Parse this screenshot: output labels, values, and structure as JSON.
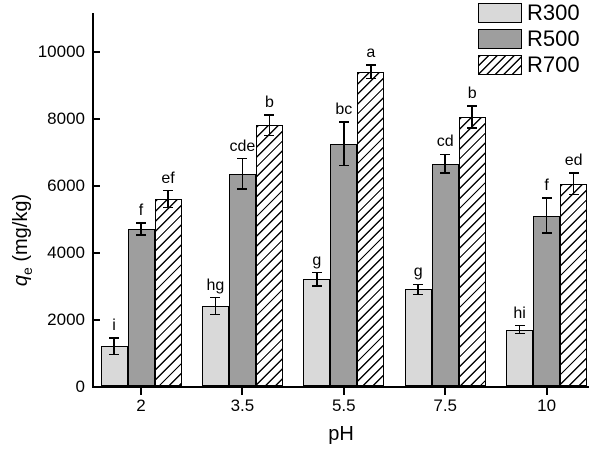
{
  "figure": {
    "background": "#ffffff"
  },
  "axis": {
    "xlabel": "pH",
    "ylabel_var": "q",
    "ylabel_sub": "e",
    "ylabel_unit": " (mg/kg)"
  },
  "colors": {
    "r300_fill": "#d9d9d9",
    "r500_fill": "#9e9e9e",
    "r700_fill": "#ffffff",
    "hatch_line": "#000000",
    "edge": "#000000",
    "axis": "#000000"
  },
  "chart_data": {
    "type": "bar",
    "title": "",
    "xlabel": "pH",
    "ylabel": "qe (mg/kg)",
    "categories": [
      "2",
      "3.5",
      "5.5",
      "7.5",
      "10"
    ],
    "yticks": [
      0,
      2000,
      4000,
      6000,
      8000,
      10000
    ],
    "ylim": [
      0,
      11150
    ],
    "grid": false,
    "legend_position": "top-right",
    "series": [
      {
        "name": "R300",
        "fill": "#d9d9d9",
        "pattern": "solid",
        "values": [
          1200,
          2400,
          3200,
          2900,
          1700
        ],
        "errors": [
          250,
          250,
          200,
          150,
          120
        ],
        "sig_labels": [
          "i",
          "hg",
          "g",
          "g",
          "hi"
        ]
      },
      {
        "name": "R500",
        "fill": "#9e9e9e",
        "pattern": "solid",
        "values": [
          4700,
          6350,
          7250,
          6650,
          5100
        ],
        "errors": [
          180,
          450,
          650,
          280,
          520
        ],
        "sig_labels": [
          "f",
          "cde",
          "bc",
          "cd",
          "f"
        ]
      },
      {
        "name": "R700",
        "fill": "#ffffff",
        "pattern": "diagonal-hatch",
        "values": [
          5600,
          7800,
          9400,
          8050,
          6050
        ],
        "errors": [
          250,
          300,
          200,
          330,
          320
        ],
        "sig_labels": [
          "ef",
          "b",
          "a",
          "b",
          "ed"
        ]
      }
    ]
  }
}
